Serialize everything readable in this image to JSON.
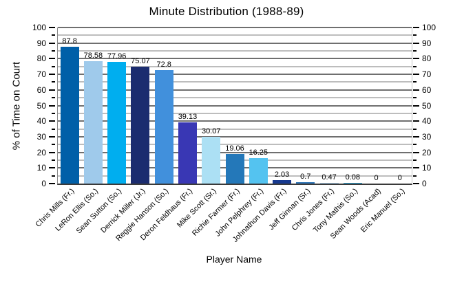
{
  "chart_data": {
    "type": "bar",
    "title": "Minute Distribution (1988-89)",
    "xlabel": "Player Name",
    "ylabel": "% of Time on Court",
    "ylim": [
      0,
      100
    ],
    "y_major_step": 10,
    "y_minor_step": 5,
    "grid": "horizontal: dark major lines every 10, light minor lines every 5",
    "legend": "none",
    "dual_y_axis": true,
    "y_tick_labels": [
      "0",
      "10",
      "20",
      "30",
      "40",
      "50",
      "60",
      "70",
      "80",
      "90",
      "100"
    ],
    "categories": [
      "Chris Mills (Fr.)",
      "LeRon Ellis (So.)",
      "Sean Sutton (So.)",
      "Derrick Miller (Jr.)",
      "Reggie Hanson (So.)",
      "Deron Feldhaus (Fr.)",
      "Mike Scott (Sr.)",
      "Richie Farmer (Fr.)",
      "John Pelphrey (Fr.)",
      "Johnathon Davis (Fr.)",
      "Jeff Ginnan (Sr.)",
      "Chris Jones (Fr.)",
      "Tony Mathis (So.)",
      "Sean Woods (Acad)",
      "Eric Manuel (So.)"
    ],
    "values": [
      87.8,
      78.58,
      77.96,
      75.07,
      72.8,
      39.13,
      30.07,
      19.06,
      16.25,
      2.03,
      0.7,
      0.47,
      0.08,
      0,
      0
    ],
    "value_labels": [
      "87.8",
      "78.58",
      "77.96",
      "75.07",
      "72.8",
      "39.13",
      "30.07",
      "19.06",
      "16.25",
      "2.03",
      "0.7",
      "0.47",
      "0.08",
      "0",
      "0"
    ],
    "bar_colors": [
      "#005FA8",
      "#9FCAEB",
      "#00AEEF",
      "#1B2C6F",
      "#4190DC",
      "#3937B4",
      "#ACE0F4",
      "#2478B9",
      "#54C3F0",
      "#17398F",
      "#2E74B6",
      "#A5C8E3",
      "#2FA0CE",
      "#1B2C6F",
      "#4190DC"
    ]
  },
  "colors": {
    "background": "#ffffff",
    "grid_major": "#6f6f6f",
    "grid_minor": "#bdbdbd",
    "axis_bottom": "#3a3a3a",
    "tick": "#000000",
    "text": "#000000"
  }
}
